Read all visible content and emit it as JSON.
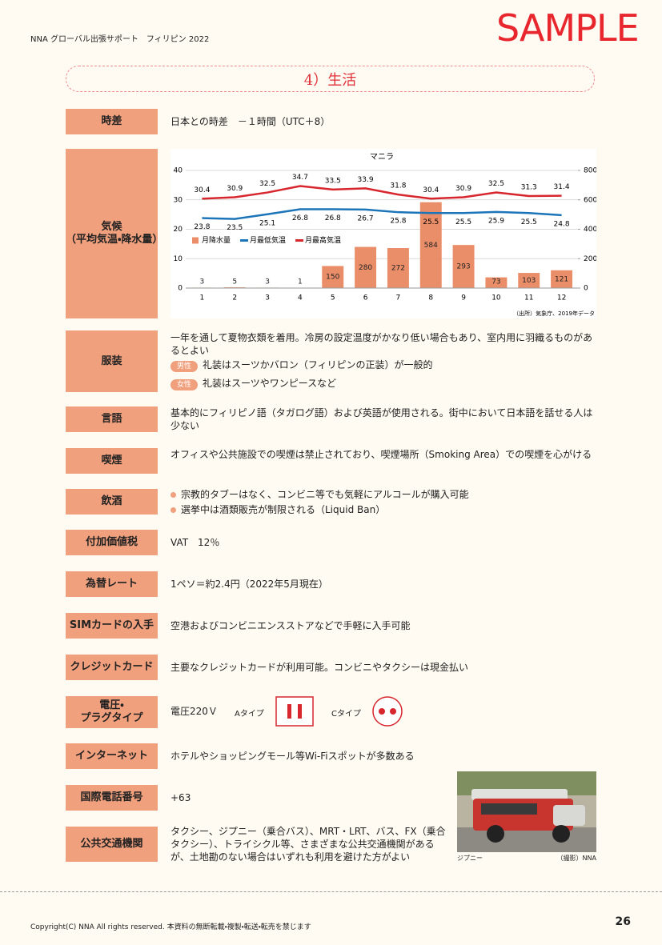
{
  "header": {
    "left": "NNA グローバル出張サポート　フィリピン 2022",
    "stamp": "SAMPLE"
  },
  "section_title": "4）生活",
  "rows": [
    {
      "label": "時差",
      "text": "日本との時差　－１時間（UTC＋8）"
    },
    {
      "label": "気候",
      "sublabel": "（平均気温・降水量）"
    },
    {
      "label": "服装",
      "text": "一年を通して夏物衣類を着用。冷房の設定温度がかなり低い場合もあり、室内用に羽織るものがあるとよい",
      "items": [
        {
          "tag": "男性",
          "text": "礼装はスーツかバロン（フィリピンの正装）が一般的"
        },
        {
          "tag": "女性",
          "text": "礼装はスーツやワンピースなど"
        }
      ]
    },
    {
      "label": "言語",
      "text": "基本的にフィリピノ語（タガログ語）および英語が使用される。街中において日本語を話せる人は少ない"
    },
    {
      "label": "喫煙",
      "text": "オフィスや公共施設での喫煙は禁止されており、喫煙場所（Smoking Area）での喫煙を心がける"
    },
    {
      "label": "飲酒",
      "bullets": [
        "宗教的タブーはなく、コンビニ等でも気軽にアルコールが購入可能",
        "選挙中は酒類販売が制限される（Liquid Ban）"
      ]
    },
    {
      "label": "付加価値税",
      "text": "VAT　12％"
    },
    {
      "label": "為替レート",
      "text": "1ペソ＝約2.4円（2022年5月現在）"
    },
    {
      "label": "SIMカードの入手",
      "text": "空港およびコンビニエンスストアなどで手軽に入手可能"
    },
    {
      "label": "クレジットカード",
      "text": "主要なクレジットカードが利用可能。コンビニやタクシーは現金払い"
    },
    {
      "label": "電圧・\nプラグタイプ",
      "text": "電圧220Ｖ",
      "plug_a": "Aタイプ",
      "plug_c": "Cタイプ"
    },
    {
      "label": "インターネット",
      "text": "ホテルやショッピングモール等Wi-Fiスポットが多数ある"
    },
    {
      "label": "国際電話番号",
      "text": "+63"
    },
    {
      "label": "公共交通機関",
      "text": "タクシー、ジプニー（乗合バス）、MRT・LRT、バス、FX（乗合タクシー）、トライシクル等、さまざまな公共交通機関があるが、土地勘のない場合はいずれも利用を避けた方がよい"
    }
  ],
  "chart_data": {
    "type": "bar_line",
    "title": "マニラ",
    "categories": [
      "1",
      "2",
      "3",
      "4",
      "5",
      "6",
      "7",
      "8",
      "9",
      "10",
      "11",
      "12"
    ],
    "series": [
      {
        "name": "月降水量",
        "type": "bar",
        "axis": "y2",
        "color": "#ea8e69",
        "values": [
          3,
          5,
          3,
          1,
          150,
          280,
          272,
          584,
          293,
          73,
          103,
          121
        ]
      },
      {
        "name": "月最低気温",
        "type": "line",
        "color": "#1c74b9",
        "values": [
          23.8,
          23.5,
          25.1,
          26.8,
          26.8,
          26.7,
          25.8,
          25.5,
          25.5,
          25.9,
          25.5,
          24.8
        ]
      },
      {
        "name": "月最高気温",
        "type": "line",
        "color": "#d7262d",
        "values": [
          30.4,
          30.9,
          32.5,
          34.7,
          33.5,
          33.9,
          31.8,
          30.4,
          30.9,
          32.5,
          31.3,
          31.4
        ]
      }
    ],
    "ylim": [
      0,
      40
    ],
    "yticks": [
      0,
      10,
      20,
      30,
      40
    ],
    "y2lim": [
      0,
      800
    ],
    "y2ticks": [
      0,
      200,
      400,
      600,
      800
    ],
    "grid": true,
    "legend": "center left",
    "source": "（出所）気象庁、2019年データ"
  },
  "photo": {
    "caption": "ジプニー",
    "credit": "（撮影）NNA"
  },
  "footer": {
    "copyright": "Copyright(C) NNA All rights reserved. 本資料の無断転載・複製・転送・転売を禁じます",
    "page": "26"
  }
}
